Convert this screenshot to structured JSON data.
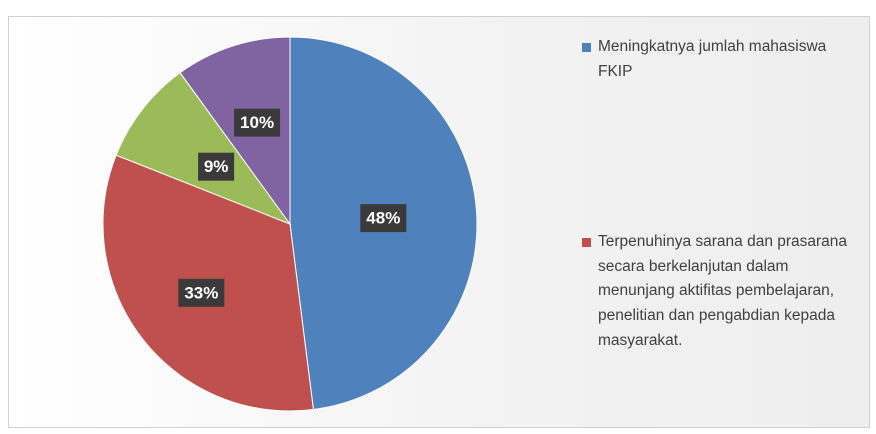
{
  "chart_data": {
    "type": "pie",
    "categories": [
      "Meningkatnya jumlah mahasiswa FKIP",
      "Terpenuhinya sarana dan prasarana secara berkelanjutan dalam menunjang aktifitas pembelajaran, penelitian dan pengabdian kepada masyarakat.",
      null,
      null
    ],
    "values": [
      48,
      33,
      9,
      10
    ],
    "value_labels": [
      "48%",
      "33%",
      "9%",
      "10%"
    ],
    "colors": [
      "#4f81bd",
      "#c0504d",
      "#9bbb59",
      "#8064a2"
    ],
    "legend": "right"
  }
}
